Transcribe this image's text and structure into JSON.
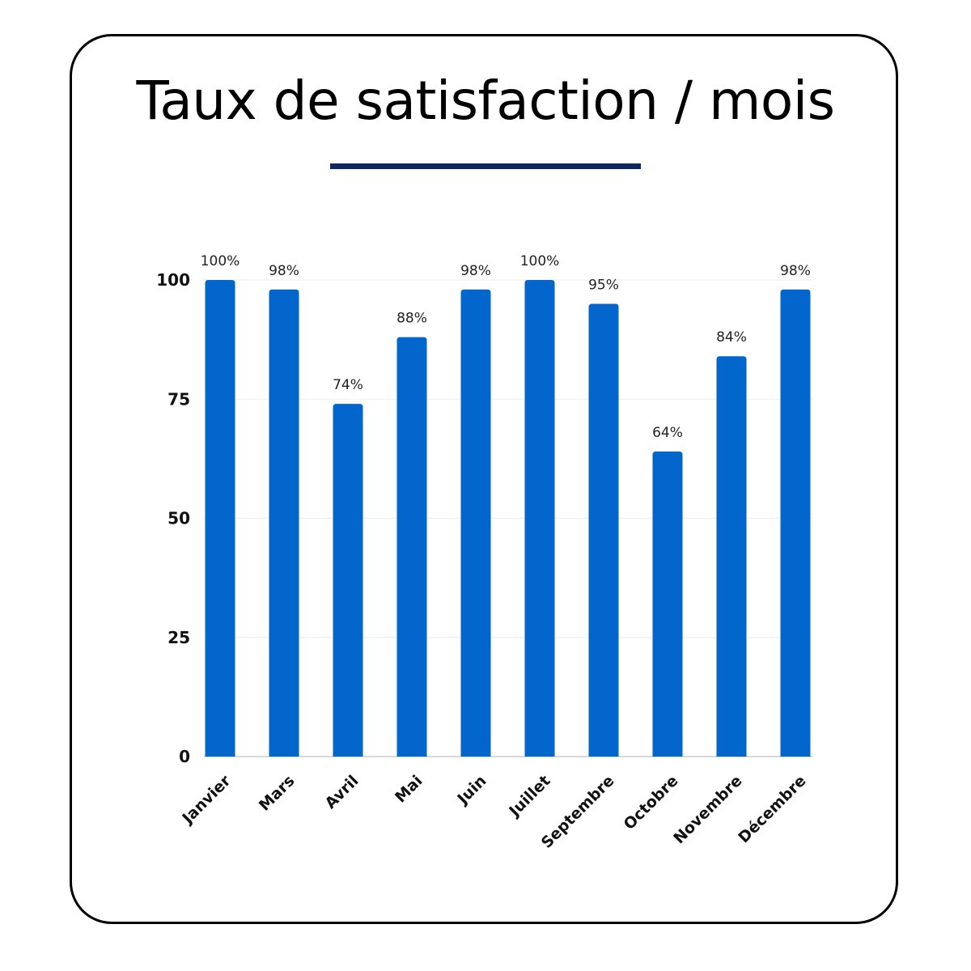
{
  "title": "Taux de satisfaction / mois",
  "colors": {
    "bar": "#0366CC",
    "title_rule": "#0F2660",
    "card_border": "#000000",
    "grid": "#EEEEEE",
    "axis": "#CCCCCC"
  },
  "chart_data": {
    "type": "bar",
    "title": "Taux de satisfaction / mois",
    "categories": [
      "Janvier",
      "Mars",
      "Avril",
      "Mai",
      "Juin",
      "Juillet",
      "Septembre",
      "Octobre",
      "Novembre",
      "Décembre"
    ],
    "values": [
      100,
      98,
      74,
      88,
      98,
      100,
      95,
      64,
      84,
      98
    ],
    "data_labels": [
      "100%",
      "98%",
      "74%",
      "88%",
      "98%",
      "100%",
      "95%",
      "64%",
      "84%",
      "98%"
    ],
    "xlabel": "",
    "ylabel": "",
    "ylim": [
      0,
      100
    ],
    "yticks": [
      0,
      25,
      50,
      75,
      100
    ],
    "ytick_labels": [
      "0",
      "25",
      "50",
      "75",
      "100"
    ],
    "grid": true,
    "legend": "none"
  }
}
